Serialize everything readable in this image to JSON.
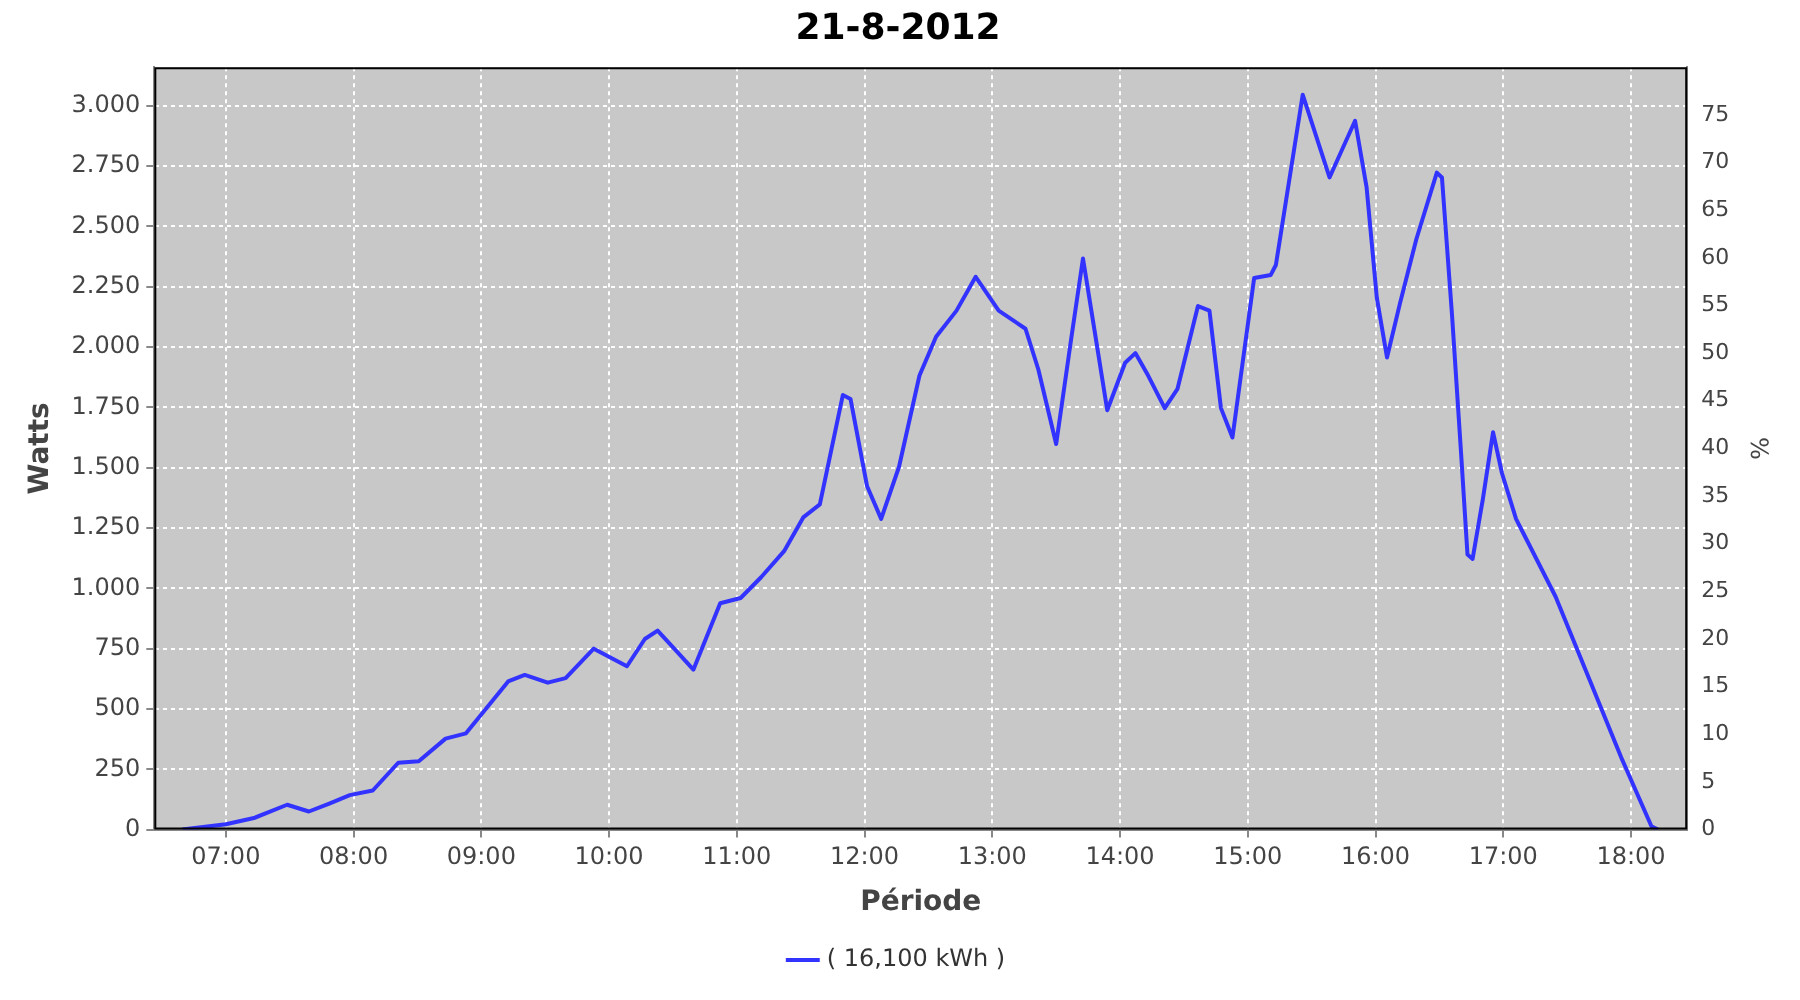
{
  "chart_data": {
    "type": "line",
    "title": "21-8-2012",
    "xlabel": "Période",
    "ylabel": "Watts",
    "y2label": "%",
    "xlim": [
      6.44,
      18.44
    ],
    "xticks": [
      {
        "value": 7,
        "label": "07:00"
      },
      {
        "value": 8,
        "label": "08:00"
      },
      {
        "value": 9,
        "label": "09:00"
      },
      {
        "value": 10,
        "label": "10:00"
      },
      {
        "value": 11,
        "label": "11:00"
      },
      {
        "value": 12,
        "label": "12:00"
      },
      {
        "value": 13,
        "label": "13:00"
      },
      {
        "value": 14,
        "label": "14:00"
      },
      {
        "value": 15,
        "label": "15:00"
      },
      {
        "value": 16,
        "label": "16:00"
      },
      {
        "value": 17,
        "label": "17:00"
      },
      {
        "value": 18,
        "label": "18:00"
      }
    ],
    "ylim": [
      0,
      3160
    ],
    "yticks": [
      0,
      250,
      500,
      750,
      {
        "value": 1000,
        "label": "1.000"
      },
      {
        "value": 1250,
        "label": "1.250"
      },
      {
        "value": 1500,
        "label": "1.500"
      },
      {
        "value": 1750,
        "label": "1.750"
      },
      {
        "value": 2000,
        "label": "2.000"
      },
      {
        "value": 2250,
        "label": "2.250"
      },
      {
        "value": 2500,
        "label": "2.500"
      },
      {
        "value": 2750,
        "label": "2.750"
      },
      {
        "value": 3000,
        "label": "3.000"
      }
    ],
    "y2lim": [
      0,
      80
    ],
    "y2ticks": [
      0,
      5,
      10,
      15,
      20,
      25,
      30,
      35,
      40,
      45,
      50,
      55,
      60,
      65,
      70,
      75
    ],
    "grid": true,
    "legend": "bottom",
    "marker": "none",
    "line_style": "solid",
    "series": [
      {
        "name": "( 16,100 kWh )",
        "color": "#3333ff",
        "x": [
          6.66,
          7.0,
          7.22,
          7.48,
          7.65,
          7.81,
          7.97,
          8.15,
          8.35,
          8.51,
          8.72,
          8.88,
          9.21,
          9.34,
          9.52,
          9.66,
          9.88,
          10.14,
          10.28,
          10.38,
          10.51,
          10.66,
          10.87,
          11.03,
          11.19,
          11.37,
          11.52,
          11.65,
          11.83,
          11.89,
          12.02,
          12.13,
          12.27,
          12.43,
          12.56,
          12.72,
          12.87,
          13.05,
          13.26,
          13.36,
          13.5,
          13.62,
          13.71,
          13.8,
          13.9,
          14.04,
          14.12,
          14.22,
          14.35,
          14.45,
          14.61,
          14.7,
          14.79,
          14.88,
          15.05,
          15.18,
          15.22,
          15.43,
          15.64,
          15.84,
          15.93,
          16.01,
          16.09,
          16.19,
          16.32,
          16.48,
          16.52,
          16.6,
          16.67,
          16.72,
          16.76,
          16.84,
          16.92,
          16.99,
          17.1,
          17.41,
          17.67,
          17.93,
          18.16,
          18.21
        ],
        "values": [
          0,
          22,
          48,
          103,
          75,
          108,
          143,
          162,
          277,
          283,
          377,
          399,
          614,
          641,
          609,
          628,
          750,
          677,
          790,
          825,
          750,
          663,
          938,
          960,
          1046,
          1154,
          1294,
          1348,
          1801,
          1785,
          1423,
          1288,
          1504,
          1882,
          2043,
          2151,
          2291,
          2151,
          2076,
          1908,
          1598,
          2043,
          2367,
          2070,
          1738,
          1935,
          1975,
          1882,
          1747,
          1827,
          2170,
          2151,
          1747,
          1625,
          2286,
          2299,
          2340,
          3046,
          2703,
          2938,
          2663,
          2205,
          1957,
          2178,
          2448,
          2723,
          2703,
          2124,
          1558,
          1140,
          1122,
          1369,
          1647,
          1477,
          1288,
          965,
          628,
          291,
          14,
          0
        ]
      }
    ]
  }
}
